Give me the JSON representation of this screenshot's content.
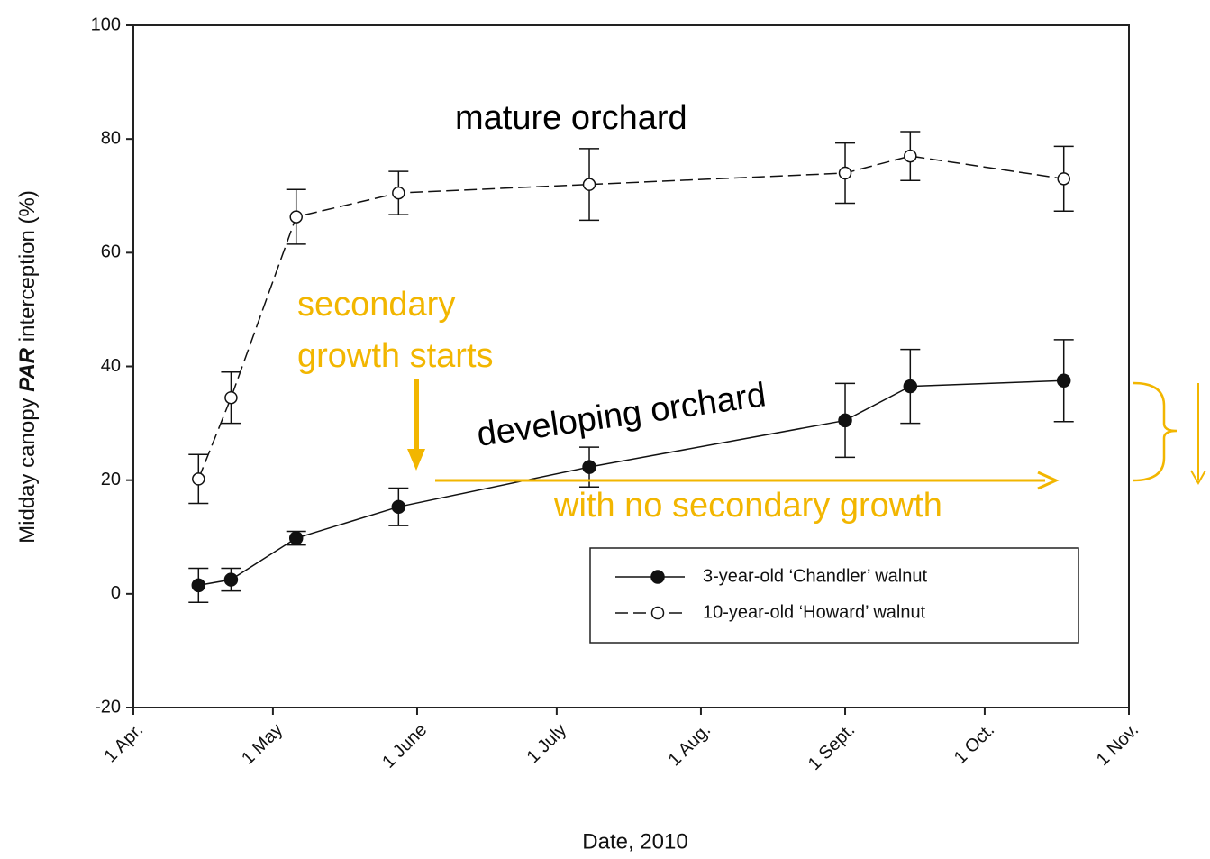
{
  "chart_data": {
    "type": "line",
    "xlabel": "Date, 2010",
    "ylabel_parts": [
      "Midday canopy ",
      "PAR",
      " interception (%)"
    ],
    "x": [
      "2010-04-15",
      "2010-04-22",
      "2010-05-06",
      "2010-05-28",
      "2010-07-08",
      "2010-09-01",
      "2010-09-15",
      "2010-10-18"
    ],
    "xlim": [
      "2010-04-01",
      "2010-11-01"
    ],
    "xticks": [
      {
        "value": "2010-04-01",
        "label": "1 Apr."
      },
      {
        "value": "2010-05-01",
        "label": "1 May"
      },
      {
        "value": "2010-06-01",
        "label": "1 June"
      },
      {
        "value": "2010-07-01",
        "label": "1 July"
      },
      {
        "value": "2010-08-01",
        "label": "1 Aug."
      },
      {
        "value": "2010-09-01",
        "label": "1 Sept."
      },
      {
        "value": "2010-10-01",
        "label": "1 Oct."
      },
      {
        "value": "2010-11-01",
        "label": "1 Nov."
      }
    ],
    "ylim": [
      -20,
      100
    ],
    "yticks": [
      -20,
      0,
      20,
      40,
      60,
      80,
      100
    ],
    "series": [
      {
        "name": "3-year-old ‘Chandler’ walnut",
        "color": "#111111",
        "dashed": false,
        "marker": "filled",
        "values": [
          1.5,
          2.5,
          9.8,
          15.3,
          22.3,
          30.5,
          36.5,
          37.5
        ],
        "errors": [
          3,
          2,
          1.2,
          3.3,
          3.5,
          6.5,
          6.5,
          7.2
        ]
      },
      {
        "name": "10-year-old ‘Howard’ walnut",
        "color": "#111111",
        "dashed": true,
        "marker": "open",
        "values": [
          20.2,
          34.5,
          66.3,
          70.5,
          72,
          74,
          77,
          73
        ],
        "errors": [
          4.3,
          4.5,
          4.8,
          3.8,
          6.3,
          5.3,
          4.3,
          5.7
        ]
      }
    ],
    "annotations": [
      {
        "text": "mature orchard",
        "color": "#000000"
      },
      {
        "text": "secondary",
        "color": "#f2b600"
      },
      {
        "text": "growth starts",
        "color": "#f2b600"
      },
      {
        "text": "developing orchard",
        "color": "#000000"
      },
      {
        "text": "with no secondary growth",
        "color": "#f2b600"
      }
    ],
    "arrow_color": "#f2b600"
  }
}
